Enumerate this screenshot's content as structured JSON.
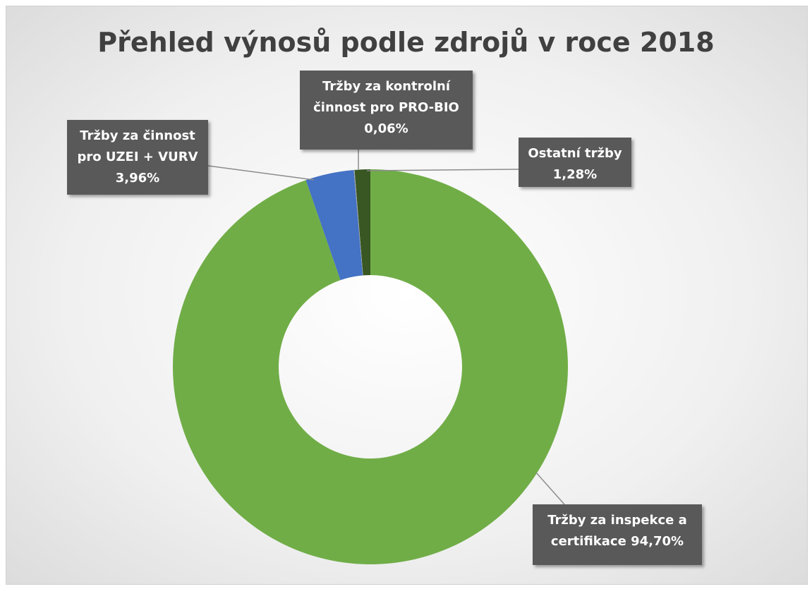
{
  "chart_data": {
    "type": "donut",
    "title": "Přehled výnosů podle zdrojů v roce 2018",
    "categories": [
      "Tržby za inspekce a certifikace",
      "Tržby za činnost pro UZEI + VURV",
      "Tržby za kontrolní činnost pro PRO-BIO",
      "Ostatní tržby"
    ],
    "values": [
      94.7,
      3.96,
      0.06,
      1.28
    ],
    "value_labels": [
      "94,70%",
      "3,96%",
      "0,06%",
      "1,28%"
    ],
    "colors": [
      "#70ad47",
      "#4472c4",
      "#a5a5a5",
      "#385723"
    ]
  }
}
